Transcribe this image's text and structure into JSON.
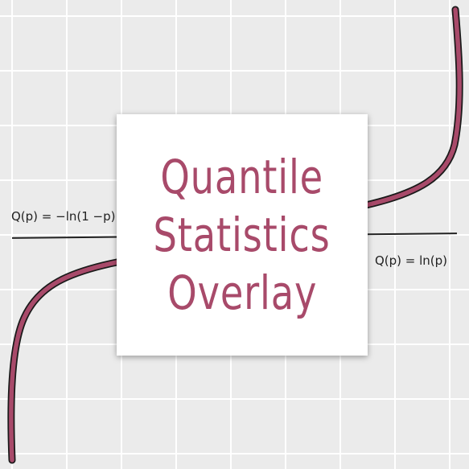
{
  "title": {
    "line1": "Quantile",
    "line2": "Statistics",
    "line3": "Overlay"
  },
  "labels": {
    "left_formula": "Q(p) = −ln(1 −p)",
    "right_formula": "Q(p) = ln(p)"
  },
  "colors": {
    "background": "#ebebeb",
    "grid": "#ffffff",
    "curve_fill": "#a84a6a",
    "curve_outline": "#1a1a1a",
    "line": "#222222",
    "title": "#a84a6a",
    "card": "#ffffff"
  }
}
